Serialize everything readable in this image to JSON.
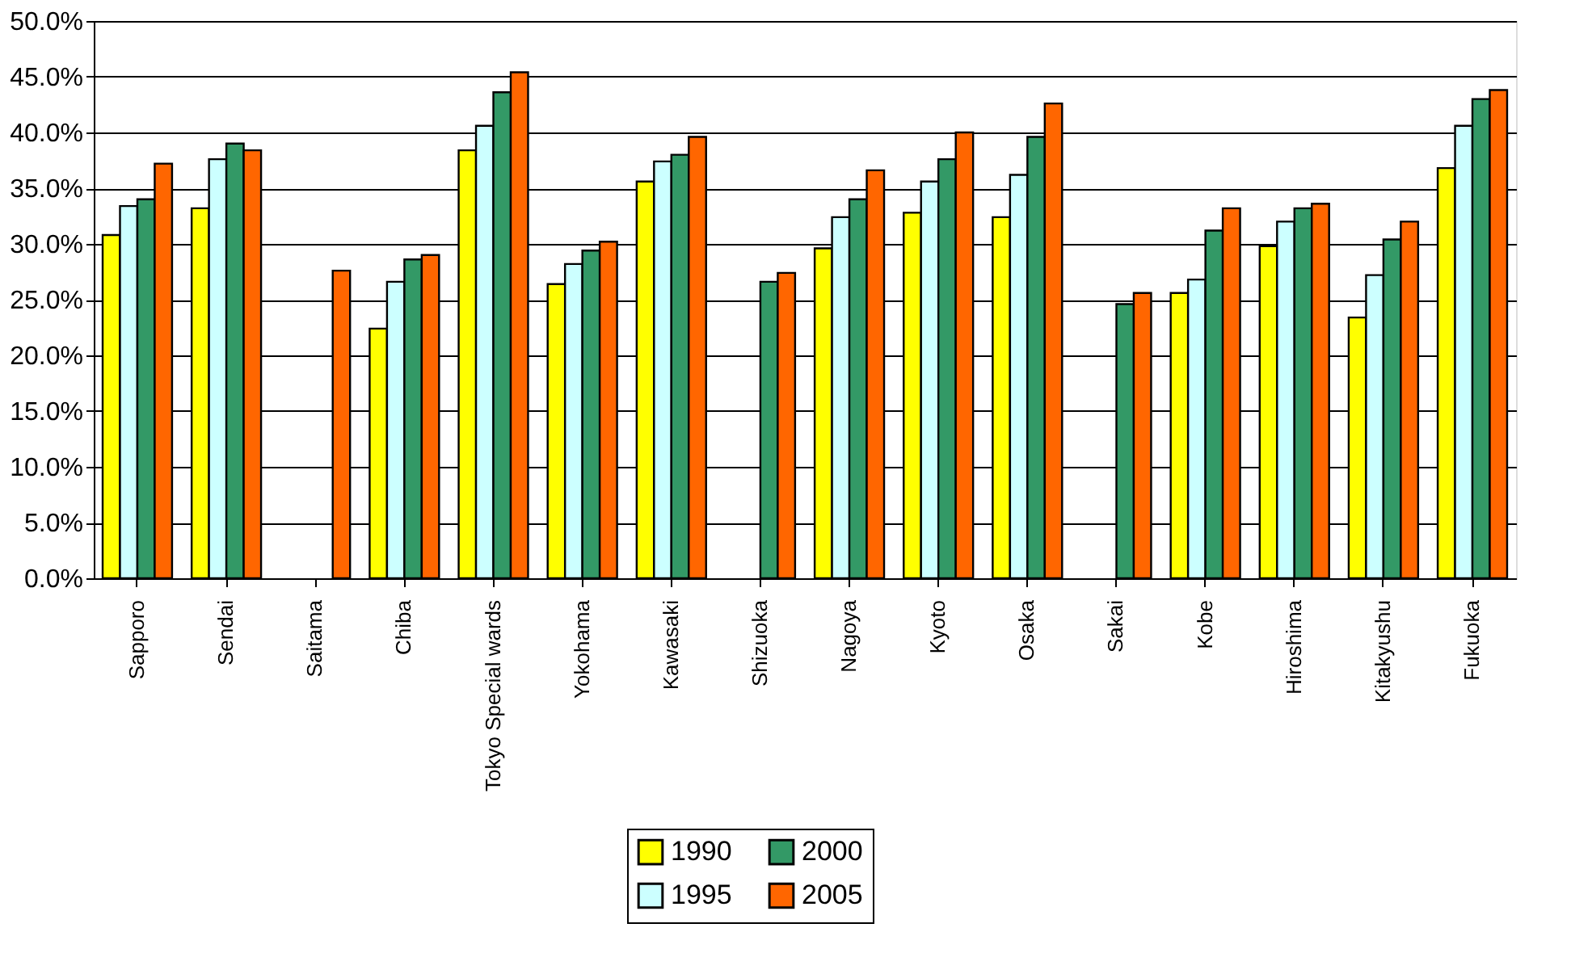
{
  "chart_data": {
    "type": "bar",
    "categories": [
      "Sapporo",
      "Sendai",
      "Saitama",
      "Chiba",
      "Tokyo Special wards",
      "Yokohama",
      "Kawasaki",
      "Shizuoka",
      "Nagoya",
      "Kyoto",
      "Osaka",
      "Sakai",
      "Kobe",
      "Hiroshima",
      "Kitakyushu",
      "Fukuoka"
    ],
    "series": [
      {
        "name": "1990",
        "color": "#ffff00",
        "values": [
          30.8,
          33.2,
          null,
          22.4,
          38.4,
          26.4,
          35.6,
          null,
          29.6,
          32.8,
          32.4,
          null,
          25.6,
          29.8,
          23.4,
          36.8
        ]
      },
      {
        "name": "1995",
        "color": "#ccffff",
        "values": [
          33.4,
          37.6,
          null,
          26.6,
          40.6,
          28.2,
          37.4,
          null,
          32.4,
          35.6,
          36.2,
          null,
          26.8,
          32.0,
          27.2,
          40.6
        ]
      },
      {
        "name": "2000",
        "color": "#339966",
        "values": [
          34.0,
          39.0,
          null,
          28.6,
          43.6,
          29.4,
          38.0,
          26.6,
          34.0,
          37.6,
          39.6,
          24.6,
          31.2,
          33.2,
          30.4,
          43.0
        ]
      },
      {
        "name": "2005",
        "color": "#ff6600",
        "values": [
          37.2,
          38.4,
          27.6,
          29.0,
          45.4,
          30.2,
          39.6,
          27.4,
          36.6,
          40.0,
          42.6,
          25.6,
          33.2,
          33.6,
          32.0,
          43.8
        ]
      }
    ],
    "ylim": [
      0,
      50
    ],
    "yticks": [
      {
        "value": 0,
        "label": "0.0%"
      },
      {
        "value": 5,
        "label": "5.0%"
      },
      {
        "value": 10,
        "label": "10.0%"
      },
      {
        "value": 15,
        "label": "15.0%"
      },
      {
        "value": 20,
        "label": "20.0%"
      },
      {
        "value": 25,
        "label": "25.0%"
      },
      {
        "value": 30,
        "label": "30.0%"
      },
      {
        "value": 35,
        "label": "35.0%"
      },
      {
        "value": 40,
        "label": "40.0%"
      },
      {
        "value": 45,
        "label": "45.0%"
      },
      {
        "value": 50,
        "label": "50.0%"
      }
    ],
    "grid": "y",
    "legend": "bottom"
  }
}
